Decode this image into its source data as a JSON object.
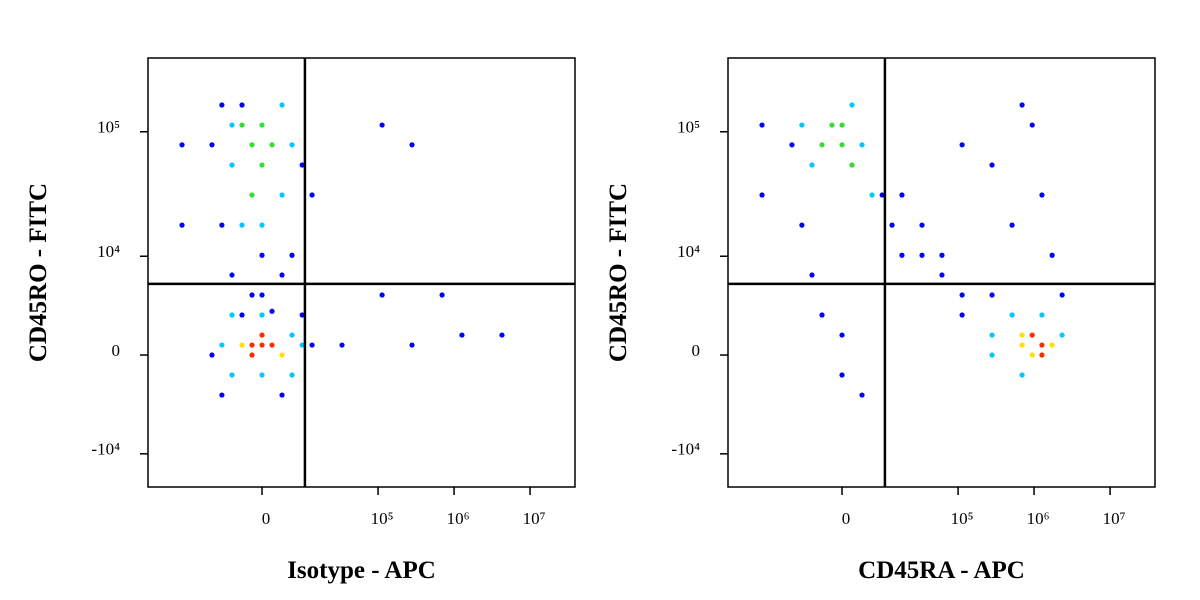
{
  "chart_data": [
    {
      "type": "scatter",
      "xlabel": "Isotype - APC",
      "ylabel": "CD45RO - FITC",
      "xscale": {
        "type": "arcsinh",
        "cofactor": 5950
      },
      "yscale": {
        "type": "arcsinh",
        "cofactor": 3380
      },
      "xlim": [
        -94000,
        39000000
      ],
      "ylim": [
        -18700,
        385000
      ],
      "xticks": [
        0,
        {
          "value": 100000,
          "label": "10⁵"
        },
        {
          "value": 1000000,
          "label": "10⁶"
        },
        {
          "value": 10000000,
          "label": "10⁷"
        }
      ],
      "yticks": [
        {
          "value": -10000,
          "label": "-10⁴"
        },
        0,
        {
          "value": 10000,
          "label": "10⁴"
        },
        {
          "value": 100000,
          "label": "10⁵"
        }
      ],
      "gates": {
        "x": 10100,
        "y": 5740
      },
      "series": [
        {
          "color": "#0000ff",
          "x": [
            -12900,
            12900,
            -9150,
            3830,
            -3830,
            9150,
            -12900,
            9150,
            -9150,
            6190,
            -6190,
            0,
            12900,
            -3830,
            -9150,
            3830,
            0,
            -1830,
            1830,
            113000,
            280000,
            696000,
            4270000,
            280000,
            1270000,
            113000,
            33300,
            -33300,
            -33300
          ],
          "y": [
            0,
            620,
            -2700,
            -2700,
            2700,
            2700,
            78700,
            54400,
            18000,
            10200,
            6900,
            10200,
            31400,
            163000,
            163000,
            6900,
            4500,
            4500,
            3000,
            113000,
            78700,
            4500,
            1260,
            620,
            1260,
            4500,
            620,
            78700,
            18000
          ]
        },
        {
          "color": "#00c8ff",
          "x": [
            -6190,
            6190,
            -6190,
            6190,
            0,
            -9150,
            9150,
            0,
            -6190,
            3830,
            -3830,
            6190,
            0,
            -6190,
            3830
          ],
          "y": [
            -1260,
            1260,
            2700,
            -1260,
            -1260,
            620,
            620,
            2700,
            54400,
            31400,
            18000,
            78700,
            18000,
            113000,
            163000
          ]
        },
        {
          "color": "#33dd33",
          "x": [
            -1830,
            0,
            -3830,
            1830,
            0,
            -1830
          ],
          "y": [
            78700,
            54400,
            113000,
            78700,
            113000,
            31400
          ]
        },
        {
          "color": "#ffe000",
          "x": [
            -3830,
            3830,
            0
          ],
          "y": [
            620,
            0,
            1260
          ]
        },
        {
          "color": "#ff2a00",
          "x": [
            -1830,
            0,
            1830,
            0,
            -1830
          ],
          "y": [
            620,
            620,
            620,
            1260,
            0
          ]
        }
      ]
    },
    {
      "type": "scatter",
      "xlabel": "CD45RA - APC",
      "ylabel": "CD45RO - FITC",
      "xscale": {
        "type": "arcsinh",
        "cofactor": 5950
      },
      "yscale": {
        "type": "arcsinh",
        "cofactor": 3380
      },
      "xlim": [
        -94000,
        39000000
      ],
      "ylim": [
        -18700,
        385000
      ],
      "xticks": [
        0,
        {
          "value": 100000,
          "label": "10⁵"
        },
        {
          "value": 1000000,
          "label": "10⁶"
        },
        {
          "value": 10000000,
          "label": "10⁷"
        }
      ],
      "yticks": [
        {
          "value": -10000,
          "label": "-10⁴"
        },
        0,
        {
          "value": 10000,
          "label": "10⁴"
        },
        {
          "value": 100000,
          "label": "10⁵"
        }
      ],
      "gates": {
        "x": 10100,
        "y": 5740
      },
      "series": [
        {
          "color": "#0000ff",
          "x": [
            -12900,
            -33300,
            -33300,
            280000,
            946000,
            514000,
            1270000,
            -9150,
            -6190,
            0,
            0,
            -3830,
            1730000,
            2340000,
            113000,
            696000,
            3830,
            9150,
            12900,
            33300,
            33300,
            61300,
            61300,
            113000,
            113000,
            280000,
            17800,
            17800
          ],
          "y": [
            78700,
            113000,
            31400,
            54400,
            113000,
            18000,
            31400,
            18000,
            6900,
            -1260,
            1260,
            2700,
            10200,
            4500,
            78700,
            163000,
            -2700,
            31400,
            18000,
            18000,
            10200,
            10200,
            6900,
            4500,
            2700,
            4500,
            31400,
            10200
          ]
        },
        {
          "color": "#00c8ff",
          "x": [
            -6190,
            3830,
            6190,
            -9150,
            1830,
            280000,
            514000,
            2340000,
            696000,
            1270000,
            280000
          ],
          "y": [
            54400,
            78700,
            31400,
            113000,
            163000,
            1260,
            2700,
            1260,
            -1260,
            2700,
            0
          ]
        },
        {
          "color": "#33dd33",
          "x": [
            0,
            -1830,
            1830,
            -3830,
            0
          ],
          "y": [
            78700,
            113000,
            54400,
            78700,
            113000
          ]
        },
        {
          "color": "#ffe000",
          "x": [
            696000,
            1730000,
            946000,
            696000
          ],
          "y": [
            620,
            620,
            0,
            1260
          ]
        },
        {
          "color": "#ff2a00",
          "x": [
            1270000,
            946000,
            1270000
          ],
          "y": [
            620,
            1260,
            0
          ]
        }
      ]
    }
  ]
}
